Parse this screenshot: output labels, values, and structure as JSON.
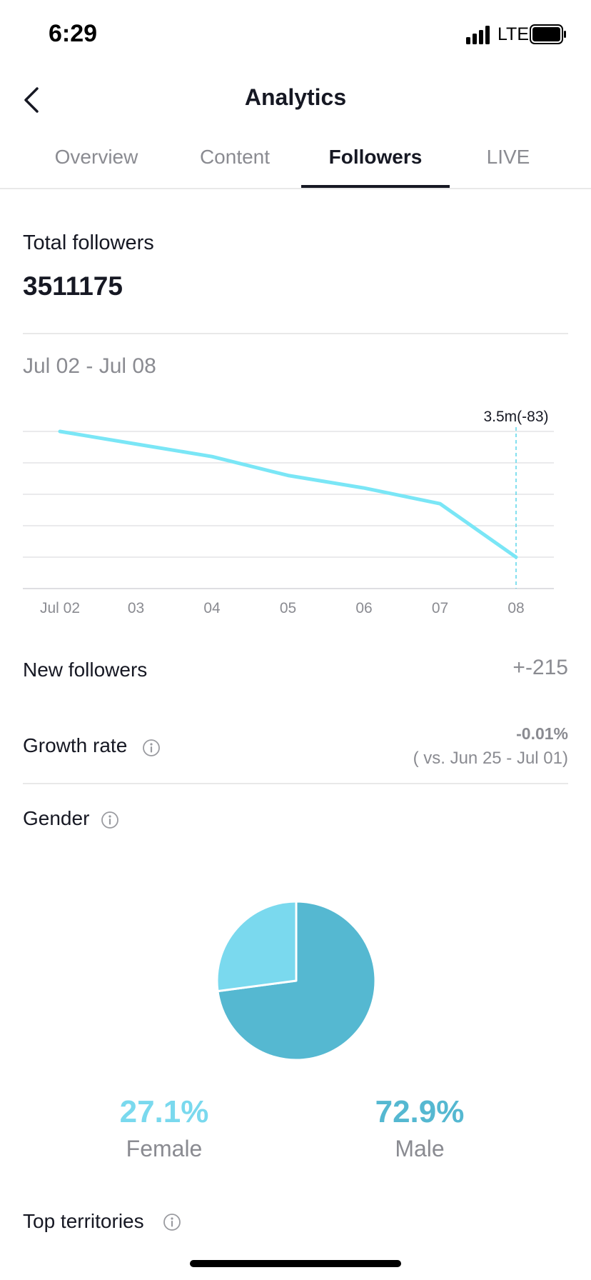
{
  "status_bar": {
    "time": "6:29",
    "network": "LTE"
  },
  "header": {
    "title": "Analytics"
  },
  "tabs": [
    {
      "label": "Overview",
      "active": false
    },
    {
      "label": "Content",
      "active": false
    },
    {
      "label": "Followers",
      "active": true
    },
    {
      "label": "LIVE",
      "active": false
    }
  ],
  "totals": {
    "label": "Total followers",
    "value": "3511175"
  },
  "date_range": "Jul 02 - Jul 08",
  "chart_data": {
    "type": "line",
    "categories": [
      "Jul 02",
      "03",
      "04",
      "05",
      "06",
      "07",
      "08"
    ],
    "series": [
      {
        "values": [
          5.0,
          4.6,
          4.2,
          3.6,
          3.2,
          2.7,
          1.0
        ]
      }
    ],
    "ylim": [
      0,
      5
    ],
    "grid": true,
    "highlight": {
      "index": 6,
      "label": "3.5m(-83)"
    },
    "color": "#7ae6f6"
  },
  "new_followers": {
    "label": "New followers",
    "value": "+-215"
  },
  "growth_rate": {
    "label": "Growth rate",
    "value": "-0.01%",
    "comparison": "( vs. Jun 25 - Jul 01)"
  },
  "gender": {
    "label": "Gender",
    "female": {
      "percent": "27.1%",
      "label": "Female",
      "fraction": 0.271,
      "color": "#7ad9ee"
    },
    "male": {
      "percent": "72.9%",
      "label": "Male",
      "fraction": 0.729,
      "color": "#55b8d1"
    }
  },
  "territories": {
    "label": "Top territories"
  }
}
